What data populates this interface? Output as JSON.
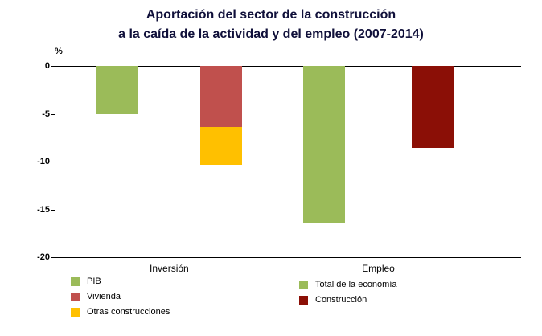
{
  "figure": {
    "background": "#ffffff",
    "border_color": "#595959"
  },
  "chart_data": {
    "type": "bar",
    "title": "Aportación del sector de la construcción a la caída de la actividad y del empleo (2007-2014)",
    "title_lines": [
      "Aportación del sector de la construcción",
      "a la caída de la actividad  y del empleo  (2007-2014)"
    ],
    "ylabel": "%",
    "ylim": [
      -20,
      0
    ],
    "yticks": [
      0,
      -5,
      -10,
      -15,
      -20
    ],
    "grid": false,
    "legend_position": "bottom",
    "groups": [
      {
        "label": "Inversión",
        "bars": [
          {
            "stack": [
              {
                "series": "PIB",
                "value": -5.0
              }
            ]
          },
          {
            "stack": [
              {
                "series": "Vivienda",
                "value": -6.4
              },
              {
                "series": "Otras construcciones",
                "value": -3.9
              }
            ]
          }
        ]
      },
      {
        "label": "Empleo",
        "bars": [
          {
            "stack": [
              {
                "series": "Total de la economía",
                "value": -16.5
              }
            ]
          },
          {
            "stack": [
              {
                "series": "Construcción",
                "value": -8.6
              }
            ]
          }
        ]
      }
    ],
    "series_colors": {
      "PIB": "#9BBB59",
      "Vivienda": "#C0504D",
      "Otras construcciones": "#FFC000",
      "Total de la economía": "#9BBB59",
      "Construcción": "#8B0F06"
    },
    "legends": [
      {
        "entries": [
          {
            "label": "PIB",
            "color": "#9BBB59"
          },
          {
            "label": "Vivienda",
            "color": "#C0504D"
          },
          {
            "label": "Otras construcciones",
            "color": "#FFC000"
          }
        ]
      },
      {
        "entries": [
          {
            "label": "Total de la economía",
            "color": "#9BBB59"
          },
          {
            "label": "Construcción",
            "color": "#8B0F06"
          }
        ]
      }
    ]
  }
}
